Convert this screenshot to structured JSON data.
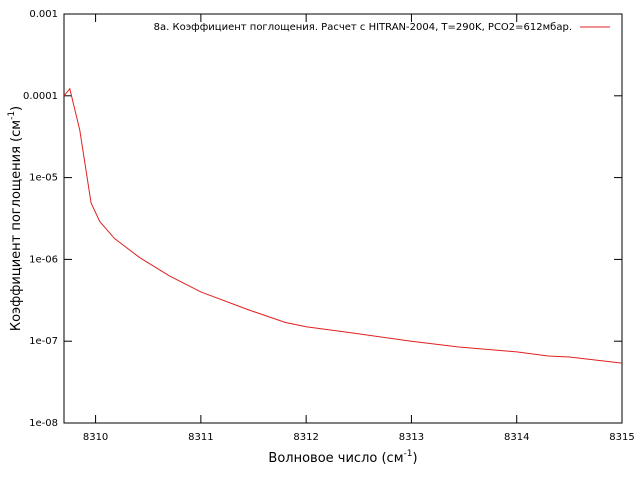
{
  "chart_data": {
    "type": "line",
    "xlabel": [
      "Волновое число (см",
      "-1",
      ")"
    ],
    "ylabel": [
      "Коэффициент поглощения (см",
      "-1",
      ")"
    ],
    "x": [
      8309.7,
      8309.755,
      8309.85,
      8309.957,
      8310.04,
      8310.18,
      8310.42,
      8310.7,
      8311,
      8311.46,
      8311.8,
      8312,
      8312.4,
      8313,
      8313.45,
      8314,
      8314.3,
      8314.5,
      8315
    ],
    "series": [
      {
        "name": "8a. Коэффициент поглощения. Расчет с HITRAN-2004, T=290K, PCO2=612мбар.",
        "color": "#e02020",
        "values": [
          0.0001,
          0.000122,
          3.8e-05,
          4.9e-06,
          2.9e-06,
          1.8e-06,
          1.05e-06,
          6.3e-07,
          4e-07,
          2.4e-07,
          1.7e-07,
          1.5e-07,
          1.28e-07,
          1e-07,
          8.5e-08,
          7.4e-08,
          6.6e-08,
          6.4e-08,
          5.4e-08
        ]
      }
    ],
    "xlim": [
      8309.7,
      8315
    ],
    "xticks": [
      8310,
      8311,
      8312,
      8313,
      8314,
      8315
    ],
    "ylim": [
      1e-08,
      0.001
    ],
    "ylog": true,
    "yticks": [
      {
        "value": 1e-08,
        "label": "1e-08"
      },
      {
        "value": 1e-07,
        "label": "1e-07"
      },
      {
        "value": 1e-06,
        "label": "1e-06"
      },
      {
        "value": 1e-05,
        "label": "1e-05"
      },
      0.0001,
      0.001
    ],
    "legend": "top-right"
  }
}
